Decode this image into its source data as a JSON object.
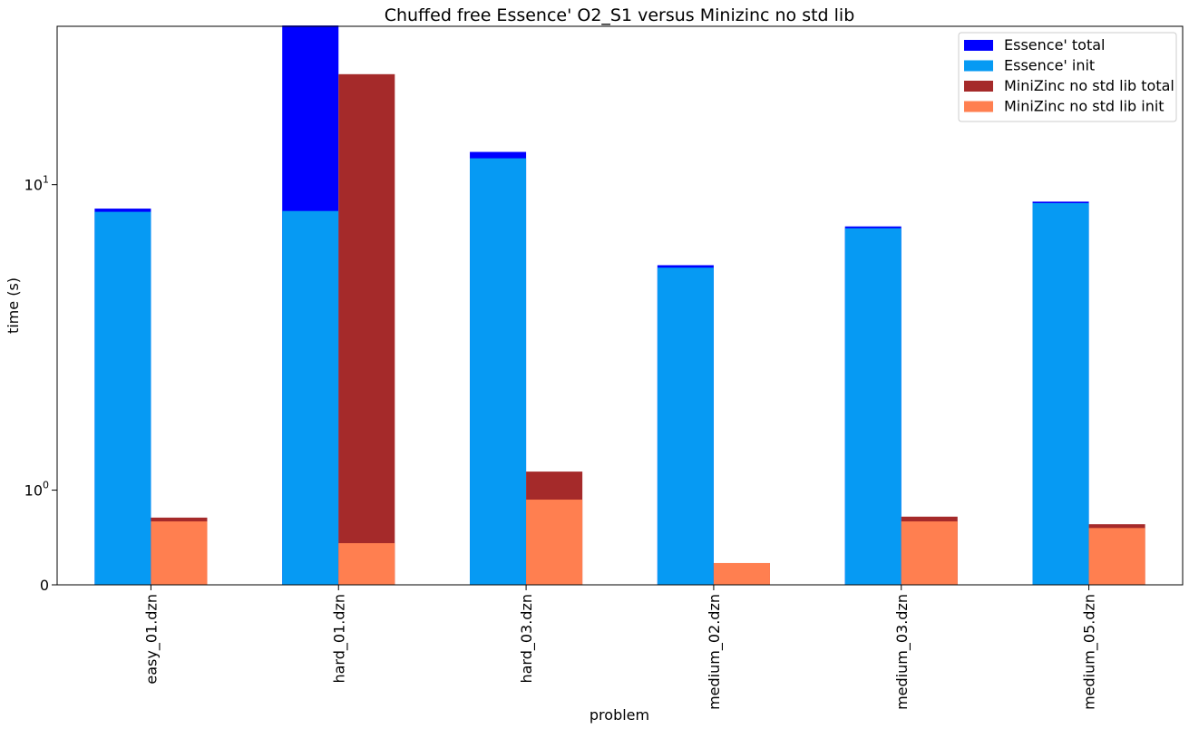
{
  "chart_data": {
    "type": "bar",
    "title": "Chuffed free Essence' O2_S1 versus Minizinc no std lib",
    "xlabel": "problem",
    "ylabel": "time (s)",
    "y_scale": "symlog",
    "ylim": [
      0,
      33
    ],
    "y_ticks": [
      {
        "value": 0,
        "label": "0"
      },
      {
        "value": 1,
        "label": "10^0"
      },
      {
        "value": 10,
        "label": "10^1"
      }
    ],
    "categories": [
      "easy_01.dzn",
      "hard_01.dzn",
      "hard_03.dzn",
      "medium_02.dzn",
      "medium_03.dzn",
      "medium_05.dzn"
    ],
    "series": [
      {
        "name": "Essence' total",
        "color": "#0000ff",
        "group": "essence",
        "values": [
          8.35,
          33.2,
          12.8,
          5.45,
          7.3,
          8.8
        ]
      },
      {
        "name": "Essence' init",
        "color": "#069af3",
        "group": "essence",
        "values": [
          8.15,
          8.2,
          12.2,
          5.35,
          7.2,
          8.7
        ]
      },
      {
        "name": "MiniZinc no std lib total",
        "color": "#a52a2a",
        "group": "minizinc",
        "values": [
          0.71,
          23.0,
          1.15,
          0.23,
          0.72,
          0.64
        ]
      },
      {
        "name": "MiniZinc no std lib init",
        "color": "#ff7f50",
        "group": "minizinc",
        "values": [
          0.67,
          0.44,
          0.9,
          0.23,
          0.67,
          0.6
        ]
      }
    ],
    "legend": {
      "position": "top-right"
    },
    "grid": false
  }
}
